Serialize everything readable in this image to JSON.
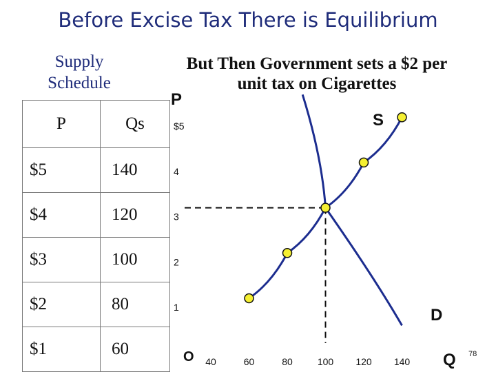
{
  "slide": {
    "title": "Before Excise Tax There is Equilibrium",
    "schedule_title": "Supply Schedule",
    "subtitle": "But Then Government sets a $2 per unit tax on Cigarettes",
    "page_number": "78"
  },
  "table": {
    "headers": [
      "P",
      "Qs"
    ],
    "rows": [
      [
        "$5",
        "140"
      ],
      [
        "$4",
        "120"
      ],
      [
        "$3",
        "100"
      ],
      [
        "$2",
        "80"
      ],
      [
        "$1",
        "60"
      ]
    ]
  },
  "chart_data": {
    "type": "line",
    "title": "",
    "xlabel": "Q",
    "ylabel": "P",
    "origin_label": "O",
    "x_ticks": [
      "40",
      "60",
      "80",
      "100",
      "120",
      "140"
    ],
    "y_ticks": [
      "1",
      "2",
      "3",
      "4",
      "$5"
    ],
    "xlim": [
      30,
      150
    ],
    "ylim": [
      0,
      5.5
    ],
    "grid": false,
    "legend": "none",
    "series": [
      {
        "name": "S",
        "points": [
          [
            60,
            1
          ],
          [
            80,
            2
          ],
          [
            100,
            3
          ],
          [
            120,
            4
          ],
          [
            140,
            5
          ]
        ],
        "color": "#1c2d8f",
        "marker_color": "#f5f032"
      },
      {
        "name": "D",
        "points": [
          [
            88,
            5.5
          ],
          [
            100,
            3
          ],
          [
            140,
            0.4
          ]
        ],
        "color": "#1c2d8f"
      }
    ],
    "equilibrium": {
      "x": 100,
      "y": 3
    }
  }
}
